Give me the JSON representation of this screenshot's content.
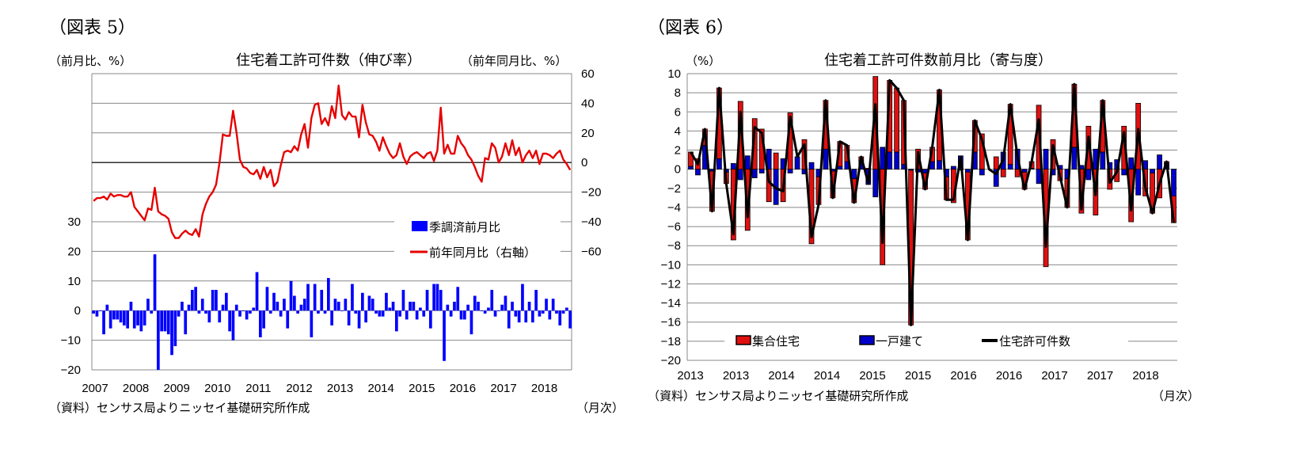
{
  "chart_data": [
    {
      "type": "bar+line",
      "figure_label": "（図表 5）",
      "title": "住宅着工許可件数（伸び率）",
      "left_axis_label": "（前月比、%）",
      "right_axis_label": "（前年同月比、%）",
      "x_unit_label": "（月次）",
      "source": "（資料）センサス局よりニッセイ基礎研究所作成",
      "left_ylim": [
        -20,
        80
      ],
      "left_ticks": [
        "30",
        "20",
        "10",
        "0",
        "−10",
        "−20"
      ],
      "right_ylim": [
        -140,
        60
      ],
      "right_ticks": [
        "60",
        "40",
        "20",
        "0",
        "−20",
        "−40",
        "−60"
      ],
      "x_tick_labels": [
        "2007",
        "2008",
        "2009",
        "2010",
        "2011",
        "2012",
        "2013",
        "2014",
        "2015",
        "2016",
        "2017",
        "2018"
      ],
      "grid": true,
      "legend": [
        "季調済前月比",
        "前年同月比（右軸）"
      ],
      "legend_position": "center-right",
      "colors": {
        "bars": "#0000ff",
        "line": "#e60000",
        "zero_line": "#000000",
        "grid": "#888888"
      },
      "series": [
        {
          "name": "季調済前月比",
          "axis": "left",
          "type": "bar",
          "values": [
            -1,
            -2,
            0,
            -8,
            2,
            -6,
            -3,
            -3,
            -4,
            -5,
            -6,
            3,
            -6,
            -5,
            -7,
            -5,
            4,
            -1,
            19,
            -20,
            -7,
            -7,
            -8,
            -15,
            -12,
            -2,
            3,
            -8,
            2,
            7,
            8,
            -1,
            4,
            -1,
            -4,
            7,
            7,
            -4,
            2,
            6,
            -7,
            -10,
            2,
            -2,
            0,
            -3,
            -1,
            1,
            13,
            -9,
            -6,
            8,
            -1,
            6,
            3,
            -2,
            4,
            -6,
            10,
            5,
            -1,
            2,
            4,
            9,
            -9,
            9,
            -1,
            7,
            -1,
            11,
            -5,
            4,
            3,
            0,
            4,
            -5,
            9,
            -1,
            -6,
            6,
            -4,
            5,
            4,
            -1,
            -2,
            -2,
            6,
            1,
            3,
            -7,
            -2,
            7,
            -3,
            3,
            3,
            -3,
            1,
            -2,
            7,
            -6,
            9,
            9,
            7,
            -17,
            2,
            -2,
            3,
            8,
            -3,
            -3,
            2,
            -8,
            5,
            3,
            0,
            -1,
            1,
            7,
            -2,
            0,
            2,
            5,
            -6,
            3,
            -2,
            -4,
            9,
            -4,
            3,
            -4,
            7,
            -2,
            -1,
            4,
            -3,
            4,
            -1,
            -5,
            -1,
            1,
            -6
          ]
        },
        {
          "name": "前年同月比（右軸）",
          "axis": "right",
          "type": "line",
          "values": [
            -26,
            -24,
            -24,
            -23,
            -25,
            -21,
            -23,
            -22,
            -22,
            -23,
            -23,
            -20,
            -30,
            -33,
            -36,
            -39,
            -31,
            -32,
            -17,
            -33,
            -35,
            -36,
            -38,
            -47,
            -51,
            -51,
            -48,
            -46,
            -48,
            -49,
            -45,
            -50,
            -35,
            -28,
            -23,
            -20,
            -15,
            0,
            19,
            18,
            18,
            35,
            20,
            2,
            -3,
            -4,
            -7,
            -8,
            -5,
            -11,
            -3,
            -10,
            -5,
            -16,
            -13,
            -2,
            7,
            8,
            7,
            11,
            8,
            19,
            26,
            10,
            30,
            39,
            40,
            26,
            30,
            25,
            38,
            30,
            52,
            32,
            29,
            34,
            31,
            31,
            17,
            39,
            27,
            19,
            18,
            14,
            8,
            17,
            11,
            6,
            3,
            5,
            13,
            4,
            -1,
            4,
            6,
            7,
            5,
            3,
            6,
            7,
            1,
            8,
            37,
            6,
            12,
            6,
            6,
            18,
            13,
            10,
            5,
            2,
            -3,
            -9,
            -13,
            3,
            2,
            13,
            10,
            0,
            4,
            13,
            5,
            15,
            5,
            10,
            0,
            5,
            8,
            3,
            8,
            -1,
            6,
            6,
            5,
            3,
            6,
            8,
            2,
            -1,
            -5
          ]
        }
      ]
    },
    {
      "type": "stacked-bar+line",
      "figure_label": "（図表 6）",
      "title": "住宅着工許可件数前月比（寄与度）",
      "y_axis_label": "（%）",
      "x_unit_label": "（月次）",
      "source": "（資料）センサス局よりニッセイ基礎研究所作成",
      "ylim": [
        -20,
        10
      ],
      "y_ticks": [
        "10",
        "8",
        "6",
        "4",
        "2",
        "0",
        "−2",
        "−4",
        "−6",
        "−8",
        "−10",
        "−12",
        "−14",
        "−16",
        "−18",
        "−20"
      ],
      "x_tick_labels": [
        "2013",
        "2013",
        "2014",
        "2014",
        "2015",
        "2015",
        "2016",
        "2016",
        "2017",
        "2017",
        "2018"
      ],
      "grid": true,
      "legend": [
        "集合住宅",
        "一戸建て",
        "住宅許可件数"
      ],
      "legend_position": "bottom",
      "colors": {
        "multifamily": "#e01010",
        "single_family": "#0000cc",
        "total": "#000000",
        "grid": "#888888"
      },
      "series": [
        {
          "name": "集合住宅",
          "type": "bar",
          "values": [
            1.5,
            1.1,
            1.7,
            -4.2,
            7.4,
            -1.2,
            -7.4,
            7.1,
            -6.4,
            5.3,
            4.2,
            -3.4,
            1.7,
            -3.4,
            5.9,
            0.0,
            3.1,
            -7.8,
            -2.9,
            5.1,
            -2.8,
            2.6,
            1.7,
            -2.5,
            0.4,
            0.1,
            9.7,
            -10.0,
            7.5,
            6.7,
            6.7,
            -16.2,
            2.1,
            -1.7,
            1.5,
            7.4,
            -2.4,
            -3.5,
            -0.1,
            -7.1,
            3.3,
            3.7,
            0.0,
            1.3,
            -0.8,
            6.3,
            -0.8,
            -1.8,
            0.7,
            6.7,
            -10.2,
            3.1,
            -1.2,
            -3.0,
            6.6,
            -4.6,
            4.5,
            -4.8,
            5.4,
            -2.1,
            -1.3,
            4.5,
            -5.5,
            6.9,
            -2.8,
            -4.2,
            -3.0,
            0.2,
            -2.8
          ]
        },
        {
          "name": "一戸建て",
          "type": "bar",
          "values": [
            0.3,
            -0.6,
            2.5,
            -0.2,
            1.1,
            -0.3,
            0.6,
            -1.1,
            1.4,
            -0.9,
            -0.4,
            2.1,
            -3.7,
            1.1,
            -0.4,
            1.3,
            -0.5,
            0.7,
            -0.8,
            2.1,
            -0.2,
            0.3,
            0.8,
            -1.0,
            0.9,
            -1.6,
            -2.9,
            2.3,
            1.8,
            1.8,
            0.5,
            -0.1,
            -0.3,
            -0.4,
            0.8,
            0.9,
            -0.8,
            0.3,
            1.4,
            -0.3,
            1.8,
            -0.6,
            0.0,
            -1.8,
            1.8,
            0.5,
            2.1,
            -0.3,
            0.1,
            -1.5,
            2.1,
            -0.6,
            0.4,
            -1.0,
            2.3,
            0.4,
            -1.1,
            2.1,
            1.8,
            0.7,
            1.0,
            -0.6,
            1.2,
            -2.7,
            0.9,
            -0.4,
            1.5,
            0.6,
            -2.8
          ]
        },
        {
          "name": "住宅許可件数",
          "type": "line",
          "values": [
            1.8,
            0.5,
            4.2,
            -4.4,
            8.5,
            -1.5,
            -6.8,
            6.0,
            -5.0,
            4.4,
            3.8,
            -1.3,
            -2.0,
            -2.3,
            5.5,
            1.3,
            2.6,
            -7.1,
            -3.7,
            7.2,
            -3.0,
            2.9,
            2.5,
            -3.5,
            1.3,
            -1.5,
            6.8,
            -7.7,
            9.3,
            8.5,
            7.2,
            -16.3,
            1.8,
            -2.1,
            2.3,
            8.3,
            -3.2,
            -3.2,
            1.3,
            -7.4,
            5.1,
            3.1,
            0.0,
            -0.5,
            1.0,
            6.8,
            1.3,
            -2.1,
            0.8,
            5.2,
            -8.1,
            2.5,
            -0.8,
            -4.0,
            8.9,
            -4.2,
            3.4,
            -2.7,
            7.2,
            -1.4,
            -0.3,
            3.9,
            -4.3,
            4.2,
            -1.9,
            -4.6,
            -1.5,
            0.8,
            -5.6
          ]
        }
      ]
    }
  ]
}
